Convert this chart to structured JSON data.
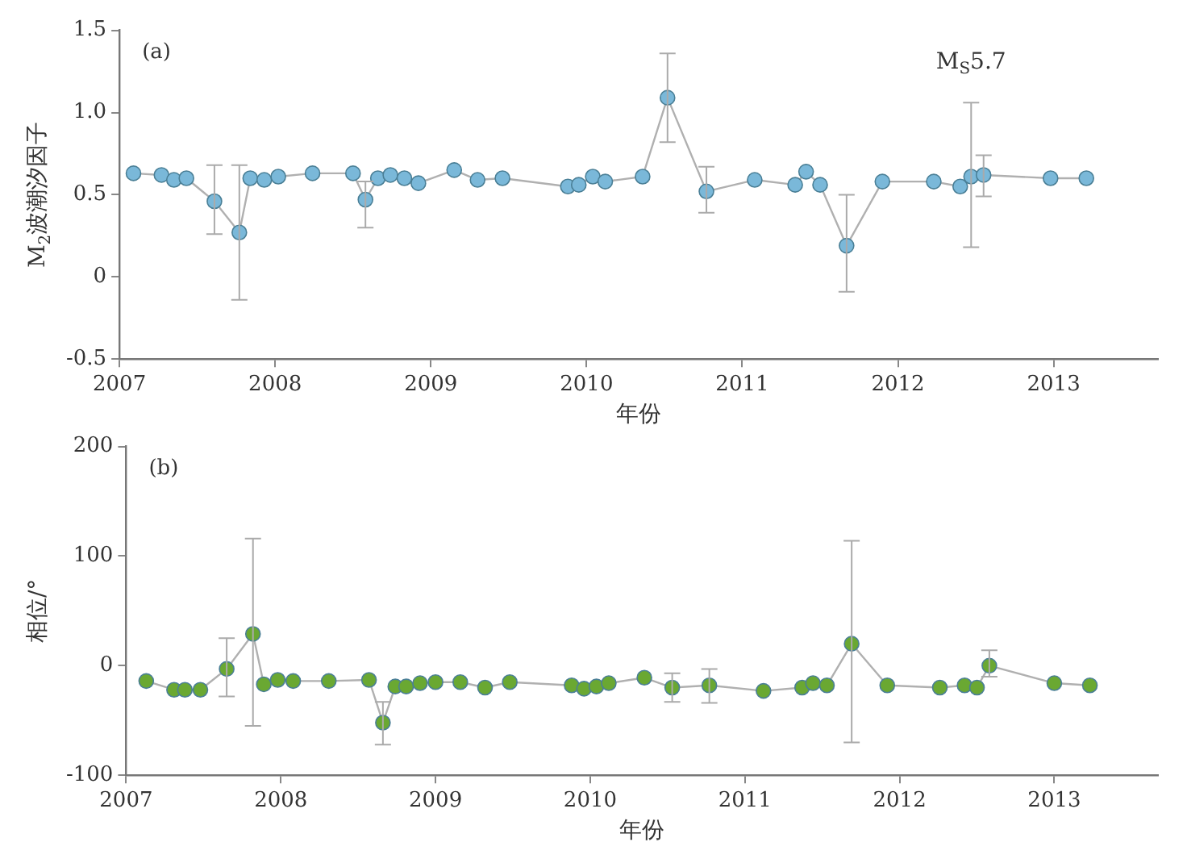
{
  "chart_data": [
    {
      "type": "line",
      "ylabel": "M$_{2}$波潮汐因子",
      "xlabel": "年份",
      "annotations": [
        "(a)",
        "M$_{S}$5.7"
      ],
      "x": [
        2007.09,
        2007.27,
        2007.35,
        2007.43,
        2007.61,
        2007.77,
        2007.84,
        2007.93,
        2008.02,
        2008.24,
        2008.5,
        2008.58,
        2008.66,
        2008.74,
        2008.83,
        2008.92,
        2009.15,
        2009.3,
        2009.46,
        2009.88,
        2009.95,
        2010.04,
        2010.12,
        2010.36,
        2010.52,
        2010.77,
        2011.08,
        2011.34,
        2011.41,
        2011.5,
        2011.67,
        2011.9,
        2012.23,
        2012.4,
        2012.47,
        2012.55,
        2012.98,
        2013.21
      ],
      "series": [
        {
          "color": "#7ab8d9",
          "values": [
            0.63,
            0.62,
            0.59,
            0.6,
            0.46,
            0.27,
            0.6,
            0.59,
            0.61,
            0.63,
            0.63,
            0.47,
            0.6,
            0.62,
            0.6,
            0.57,
            0.65,
            0.59,
            0.6,
            0.55,
            0.56,
            0.61,
            0.58,
            0.61,
            1.09,
            0.52,
            0.59,
            0.56,
            0.64,
            0.56,
            0.19,
            0.58,
            0.58,
            0.55,
            0.61,
            0.62,
            0.6,
            0.6
          ],
          "errors": [
            null,
            null,
            null,
            null,
            [
              0.26,
              0.68
            ],
            [
              -0.14,
              0.68
            ],
            null,
            null,
            null,
            null,
            null,
            [
              0.3,
              0.58
            ],
            null,
            null,
            null,
            null,
            null,
            null,
            null,
            null,
            null,
            null,
            null,
            null,
            [
              0.82,
              1.36
            ],
            [
              0.39,
              0.67
            ],
            null,
            null,
            null,
            null,
            [
              -0.09,
              0.5
            ],
            null,
            null,
            null,
            [
              0.18,
              1.06
            ],
            [
              0.49,
              0.74
            ],
            null,
            null
          ]
        }
      ],
      "marker": "circle",
      "line_style": "solid",
      "grid": false,
      "xlim": [
        2007,
        2013.67
      ],
      "xticks": [
        2007,
        2008,
        2009,
        2010,
        2011,
        2012,
        2013
      ],
      "ylim": [
        -0.5,
        1.5
      ],
      "yticks": [
        -0.5,
        0,
        0.5,
        {
          "value": 1,
          "label": "1.0"
        },
        1.5
      ]
    },
    {
      "type": "line",
      "ylabel": "相位/°",
      "xlabel": "年份",
      "annotations": [
        "(b)"
      ],
      "x": [
        2007.13,
        2007.31,
        2007.38,
        2007.48,
        2007.65,
        2007.82,
        2007.89,
        2007.98,
        2008.08,
        2008.31,
        2008.57,
        2008.66,
        2008.74,
        2008.81,
        2008.9,
        2009.0,
        2009.16,
        2009.32,
        2009.48,
        2009.88,
        2009.96,
        2010.04,
        2010.12,
        2010.35,
        2010.53,
        2010.77,
        2011.12,
        2011.37,
        2011.44,
        2011.53,
        2011.69,
        2011.92,
        2012.26,
        2012.42,
        2012.5,
        2012.58,
        2013.0,
        2013.23
      ],
      "series": [
        {
          "color": "#6aa832",
          "values": [
            -14,
            -22,
            -22,
            -22,
            -3,
            29,
            -17,
            -13,
            -14,
            -14,
            -13,
            -52,
            -19,
            -19,
            -16,
            -15,
            -15,
            -20,
            -15,
            -18,
            -21,
            -19,
            -16,
            -11,
            -20,
            -18,
            -23,
            -20,
            -16,
            -18,
            20,
            -18,
            -20,
            -18,
            -20,
            0,
            -16,
            -18
          ],
          "errors": [
            null,
            null,
            null,
            null,
            [
              -28,
              25
            ],
            [
              -55,
              116
            ],
            null,
            null,
            null,
            null,
            null,
            [
              -72,
              -33
            ],
            null,
            null,
            null,
            null,
            null,
            null,
            null,
            null,
            null,
            null,
            null,
            null,
            [
              -33,
              -7
            ],
            [
              -34,
              -3
            ],
            null,
            null,
            null,
            null,
            [
              -70,
              114
            ],
            null,
            null,
            null,
            null,
            [
              -10,
              14
            ],
            null,
            null
          ]
        }
      ],
      "marker": "circle",
      "line_style": "solid",
      "grid": false,
      "xlim": [
        2007,
        2013.67
      ],
      "xticks": [
        2007,
        2008,
        2009,
        2010,
        2011,
        2012,
        2013
      ],
      "ylim": [
        -100,
        200
      ],
      "yticks": [
        -100,
        0,
        100,
        200
      ]
    }
  ]
}
